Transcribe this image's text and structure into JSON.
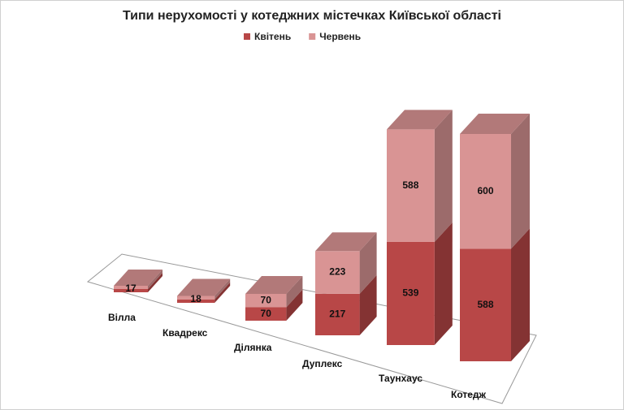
{
  "chart_data": {
    "type": "bar3d_stacked",
    "title": "Типи нерухомості у котеджних містечках Київської області",
    "categories": [
      "Вілла",
      "Квадрекс",
      "Ділянка",
      "Дуплекс",
      "Таунхаус",
      "Котедж"
    ],
    "series": [
      {
        "name": "Квітень",
        "color": "#b84747",
        "values": [
          17,
          18,
          70,
          217,
          539,
          588
        ]
      },
      {
        "name": "Червень",
        "color": "#d99494",
        "values": [
          17,
          18,
          70,
          223,
          588,
          600
        ],
        "value_labels": [
          null,
          null,
          "70",
          "223",
          "588",
          "600"
        ]
      }
    ],
    "legend": "top"
  }
}
